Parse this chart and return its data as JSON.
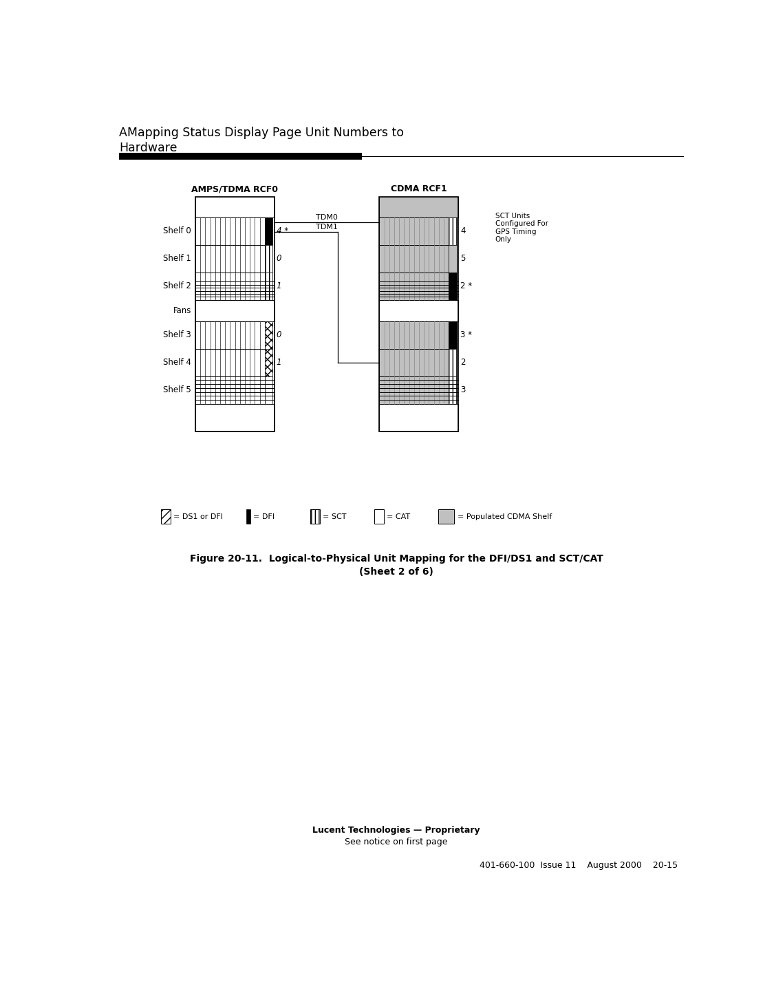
{
  "title_line1": "AMapping Status Display Page Unit Numbers to",
  "title_line2": "Hardware",
  "fig_caption_line1": "Figure 20-11.  Logical-to-Physical Unit Mapping for the DFI/DS1 and SCT/CAT",
  "fig_caption_line2": "(Sheet 2 of 6)",
  "footer_bold": "Lucent Technologies — Proprietary",
  "footer_normal": "See notice on first page",
  "footer_right": "401-660-100  Issue 11    August 2000    20-15",
  "rcf0_label": "AMPS/TDMA RCF0",
  "rcf1_label": "CDMA RCF1",
  "tdm0": "TDM0",
  "tdm1": "TDM1",
  "sct_note": "SCT Units\nConfigured For\nGPS Timing\nOnly",
  "shelf_labels": [
    "Shelf 0",
    "Shelf 1",
    "Shelf 2",
    "Fans",
    "Shelf 3",
    "Shelf 4",
    "Shelf 5"
  ],
  "rcf0_unit_nums": [
    "4 *",
    "0",
    "1",
    "0",
    "1"
  ],
  "rcf1_unit_nums": [
    "4",
    "5",
    "2 *",
    "3 *",
    "2",
    "3"
  ],
  "leg_ds1": "= DS1 or DFI",
  "leg_dfi": "= DFI",
  "leg_sct": "= SCT",
  "leg_cat": "= CAT",
  "leg_cdma": "= Populated CDMA Shelf",
  "bg_color": "#ffffff",
  "black": "#000000",
  "gray_cdma": "#c0c0c0",
  "gray_light": "#d8d8d8",
  "lw_rack": 1.2,
  "lw_shelf": 0.7,
  "lw_vline": 0.45,
  "lw_hline": 0.7,
  "lw_tdm": 0.9
}
